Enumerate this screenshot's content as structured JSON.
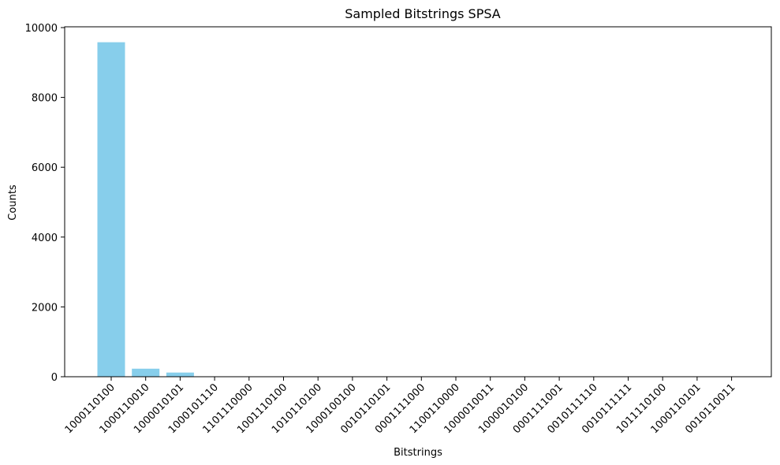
{
  "chart_data": {
    "type": "bar",
    "title": "Sampled Bitstrings SPSA",
    "xlabel": "Bitstrings",
    "ylabel": "Counts",
    "ylim": [
      0,
      10000
    ],
    "yticks": [
      0,
      2000,
      4000,
      6000,
      8000,
      10000
    ],
    "bar_color": "#87ceeb",
    "grid": false,
    "categories": [
      "1000110100",
      "1000110010",
      "1000010101",
      "1000101110",
      "1101110000",
      "1001110100",
      "1010110100",
      "1000100100",
      "0010110101",
      "0001111000",
      "1100110000",
      "1000010011",
      "1000010100",
      "0001111001",
      "0010111110",
      "0010111111",
      "1011110100",
      "1000110101",
      "0010110011"
    ],
    "values": [
      9580,
      230,
      120,
      1,
      1,
      1,
      1,
      1,
      1,
      1,
      1,
      1,
      1,
      1,
      1,
      1,
      1,
      1,
      1
    ]
  }
}
